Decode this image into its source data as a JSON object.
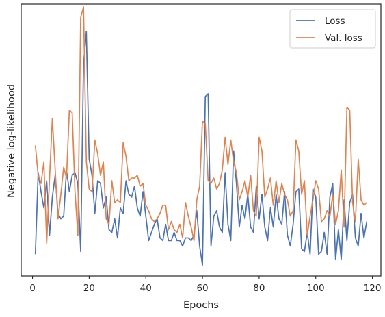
{
  "chart_data": {
    "type": "line",
    "title": "",
    "xlabel": "Epochs",
    "ylabel": "Negative log-likelihood",
    "xlim": [
      -4,
      123
    ],
    "ylim": [
      0,
      10
    ],
    "xticks": [
      0,
      20,
      40,
      60,
      80,
      100,
      120
    ],
    "yticks_shown": false,
    "grid": false,
    "legend_position": "top-right",
    "x": [
      1,
      2,
      3,
      4,
      5,
      6,
      7,
      8,
      9,
      10,
      11,
      12,
      13,
      14,
      15,
      16,
      17,
      18,
      19,
      20,
      21,
      22,
      23,
      24,
      25,
      26,
      27,
      28,
      29,
      30,
      31,
      32,
      33,
      34,
      35,
      36,
      37,
      38,
      39,
      40,
      41,
      42,
      43,
      44,
      45,
      46,
      47,
      48,
      49,
      50,
      51,
      52,
      53,
      54,
      55,
      56,
      57,
      58,
      59,
      60,
      61,
      62,
      63,
      64,
      65,
      66,
      67,
      68,
      69,
      70,
      71,
      72,
      73,
      74,
      75,
      76,
      77,
      78,
      79,
      80,
      81,
      82,
      83,
      84,
      85,
      86,
      87,
      88,
      89,
      90,
      91,
      92,
      93,
      94,
      95,
      96,
      97,
      98,
      99,
      100,
      101,
      102,
      103,
      104,
      105,
      106,
      107,
      108,
      109,
      110,
      111,
      112,
      113,
      114,
      115,
      116,
      117,
      118
    ],
    "series": [
      {
        "name": "Loss",
        "color": "#4c72b0",
        "values": [
          0.8,
          3.8,
          3.1,
          2.5,
          3.5,
          1.5,
          2.9,
          3.7,
          2.3,
          2.1,
          2.2,
          3.9,
          3.1,
          3.7,
          3.8,
          3.4,
          0.9,
          7.8,
          9.0,
          4.3,
          3.7,
          2.3,
          3.5,
          3.4,
          2.5,
          2.9,
          1.7,
          1.6,
          2.1,
          1.4,
          2.5,
          2.3,
          3.5,
          3.0,
          2.9,
          3.3,
          2.5,
          2.2,
          3.1,
          2.2,
          1.3,
          1.6,
          1.9,
          2.1,
          1.4,
          1.3,
          1.9,
          1.3,
          1.3,
          1.6,
          1.3,
          1.3,
          1.1,
          1.4,
          1.4,
          1.3,
          1.5,
          2.4,
          1.1,
          0.4,
          6.6,
          6.7,
          1.1,
          2.2,
          2.4,
          1.8,
          1.6,
          3.8,
          1.9,
          1.3,
          4.6,
          3.4,
          1.8,
          2.6,
          2.1,
          3.0,
          1.8,
          1.6,
          3.3,
          2.1,
          3.0,
          1.8,
          1.3,
          2.5,
          1.8,
          3.0,
          2.1,
          1.9,
          3.1,
          1.5,
          1.1,
          1.9,
          3.1,
          3.2,
          1.0,
          0.9,
          1.6,
          0.8,
          3.2,
          2.9,
          0.8,
          0.9,
          1.6,
          0.8,
          2.9,
          3.4,
          0.6,
          1.7,
          0.6,
          2.8,
          1.3,
          2.7,
          3.0,
          1.4,
          1.1,
          2.3,
          1.4,
          2.0
        ]
      },
      {
        "name": "Val. loss",
        "color": "#dd8452",
        "values": [
          4.8,
          3.7,
          3.4,
          4.2,
          1.2,
          3.6,
          5.8,
          3.9,
          2.1,
          3.0,
          4.0,
          3.6,
          6.1,
          6.0,
          3.1,
          1.5,
          9.5,
          9.9,
          4.2,
          3.2,
          3.1,
          5.0,
          4.5,
          3.7,
          4.2,
          2.1,
          1.9,
          3.5,
          2.7,
          2.8,
          2.7,
          4.9,
          4.4,
          3.5,
          3.6,
          3.6,
          3.7,
          3.3,
          3.4,
          2.6,
          2.4,
          2.1,
          2.0,
          2.1,
          2.3,
          2.6,
          2.6,
          1.7,
          2.0,
          1.7,
          1.6,
          1.9,
          1.4,
          2.7,
          2.2,
          1.8,
          1.3,
          2.8,
          3.3,
          5.7,
          5.6,
          3.5,
          3.4,
          3.6,
          3.2,
          3.4,
          3.9,
          5.1,
          4.1,
          5.0,
          4.2,
          3.8,
          2.8,
          3.1,
          3.5,
          2.9,
          3.7,
          2.4,
          2.2,
          5.1,
          4.6,
          2.9,
          3.2,
          3.6,
          2.6,
          3.5,
          2.7,
          3.4,
          3.0,
          2.8,
          2.2,
          2.4,
          5.0,
          4.6,
          3.0,
          3.5,
          1.5,
          2.2,
          2.8,
          3.5,
          3.2,
          2.0,
          2.1,
          2.4,
          2.2,
          3.0,
          1.9,
          2.4,
          3.9,
          1.8,
          6.2,
          6.1,
          2.7,
          2.0,
          4.3,
          2.8,
          2.6,
          2.7
        ]
      }
    ]
  }
}
